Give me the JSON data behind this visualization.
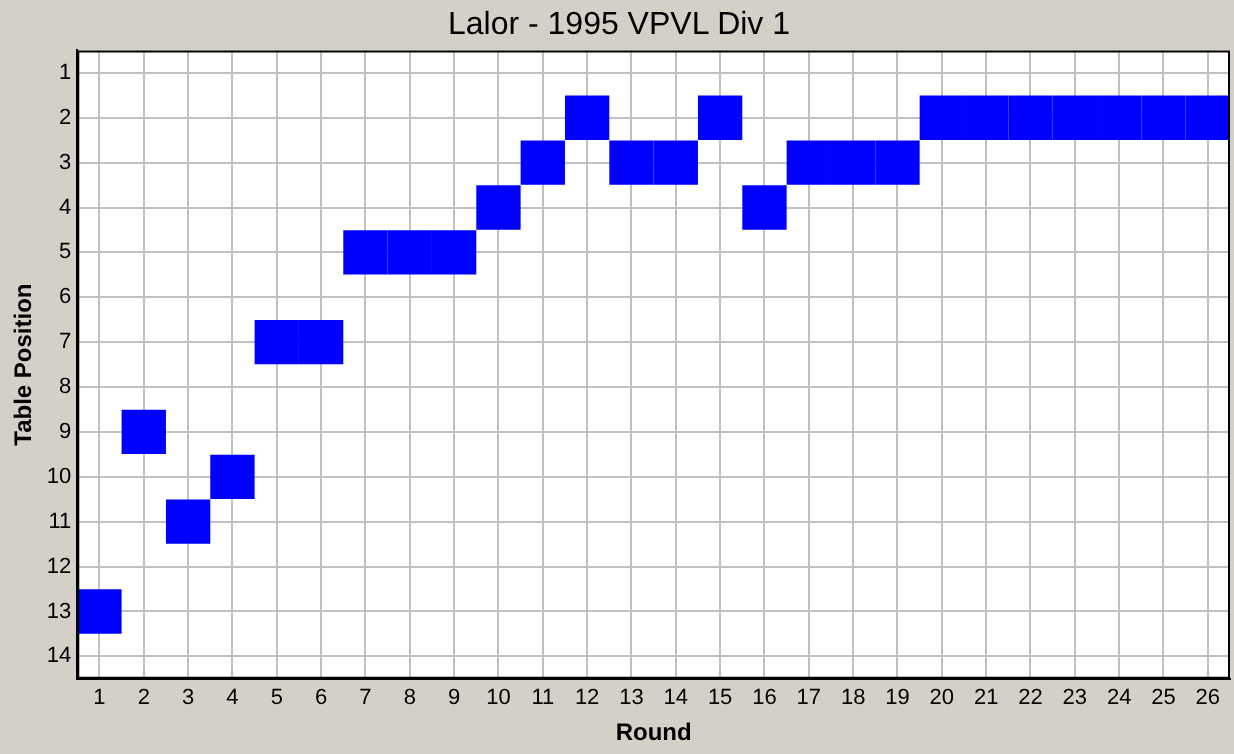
{
  "chart_data": {
    "type": "scatter",
    "title": "Lalor - 1995 VPVL Div 1",
    "xlabel": "Round",
    "ylabel": "Table Position",
    "x": [
      1,
      2,
      3,
      4,
      5,
      6,
      7,
      8,
      9,
      10,
      11,
      12,
      13,
      14,
      15,
      16,
      17,
      18,
      19,
      20,
      21,
      22,
      23,
      24,
      25,
      26
    ],
    "values": [
      13,
      9,
      11,
      10,
      7,
      7,
      5,
      5,
      5,
      4,
      3,
      2,
      3,
      3,
      2,
      4,
      3,
      3,
      3,
      2,
      2,
      2,
      2,
      2,
      2,
      2
    ],
    "color": "#0000ff",
    "marker": "square",
    "grid": true,
    "xlim": [
      0.5,
      26.5
    ],
    "xticks": [
      1,
      2,
      3,
      4,
      5,
      6,
      7,
      8,
      9,
      10,
      11,
      12,
      13,
      14,
      15,
      16,
      17,
      18,
      19,
      20,
      21,
      22,
      23,
      24,
      25,
      26
    ],
    "ylim": [
      14.5,
      0.5
    ],
    "yticks": [
      1,
      2,
      3,
      4,
      5,
      6,
      7,
      8,
      9,
      10,
      11,
      12,
      13,
      14
    ]
  }
}
